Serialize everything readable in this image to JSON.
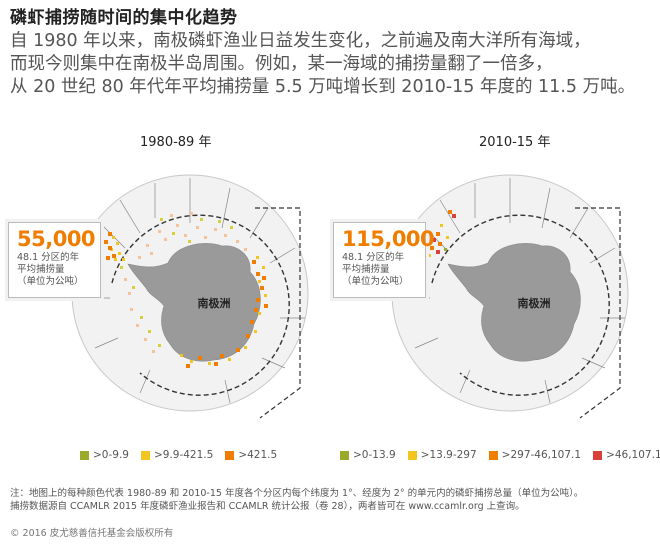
{
  "title": "磷虾捕捞随时间的集中化趋势",
  "intro": [
    "自 1980 年以来，南极磷虾渔业日益发生变化，之前遍及南大洋所有海域，",
    "而现今则集中在南极半岛周围。例如，某一海域的捕捞量翻了一倍多，",
    "从 20 世纪 80 年代年平均捕捞量 5.5 万吨增长到 2010-15 年度的 11.5 万吨。"
  ],
  "maps": [
    {
      "period": "1980-89 年",
      "continent_label": "南极洲",
      "callout": {
        "value": "55,000",
        "label_lines": [
          "48.1 分区的年",
          "平均捕捞量",
          "（单位为公吨）"
        ]
      },
      "legend": [
        {
          "label": ">0-9.9",
          "color": "#9aaa2b"
        },
        {
          "label": ">9.9-421.5",
          "color": "#f2c61f"
        },
        {
          "label": ">421.5",
          "color": "#ef7d00"
        }
      ]
    },
    {
      "period": "2010-15 年",
      "continent_label": "南极洲",
      "callout": {
        "value": "115,000",
        "label_lines": [
          "48.1 分区的年",
          "平均捕捞量",
          "（单位为公吨）"
        ]
      },
      "legend": [
        {
          "label": ">0-13.9",
          "color": "#9aaa2b"
        },
        {
          "label": ">13.9-297",
          "color": "#f2c61f"
        },
        {
          "label": ">297-46,107.1",
          "color": "#ef7d00"
        },
        {
          "label": ">46,107.1",
          "color": "#d9403a"
        }
      ]
    }
  ],
  "notes": [
    "注：地图上的每种颜色代表 1980-89 和 2010-15 年度各个分区内每个纬度为 1°、经度为 2° 的单元内的磷虾捕捞总量（单位为公吨）。",
    "捕捞数据源自 CCAMLR 2015 年度磷虾渔业报告和 CCAMLR 统计公报（卷 28），两者皆可在 www.ccamlr.org 上查询。"
  ],
  "copyright": "© 2016 皮尤慈善信托基金会版权所有"
}
